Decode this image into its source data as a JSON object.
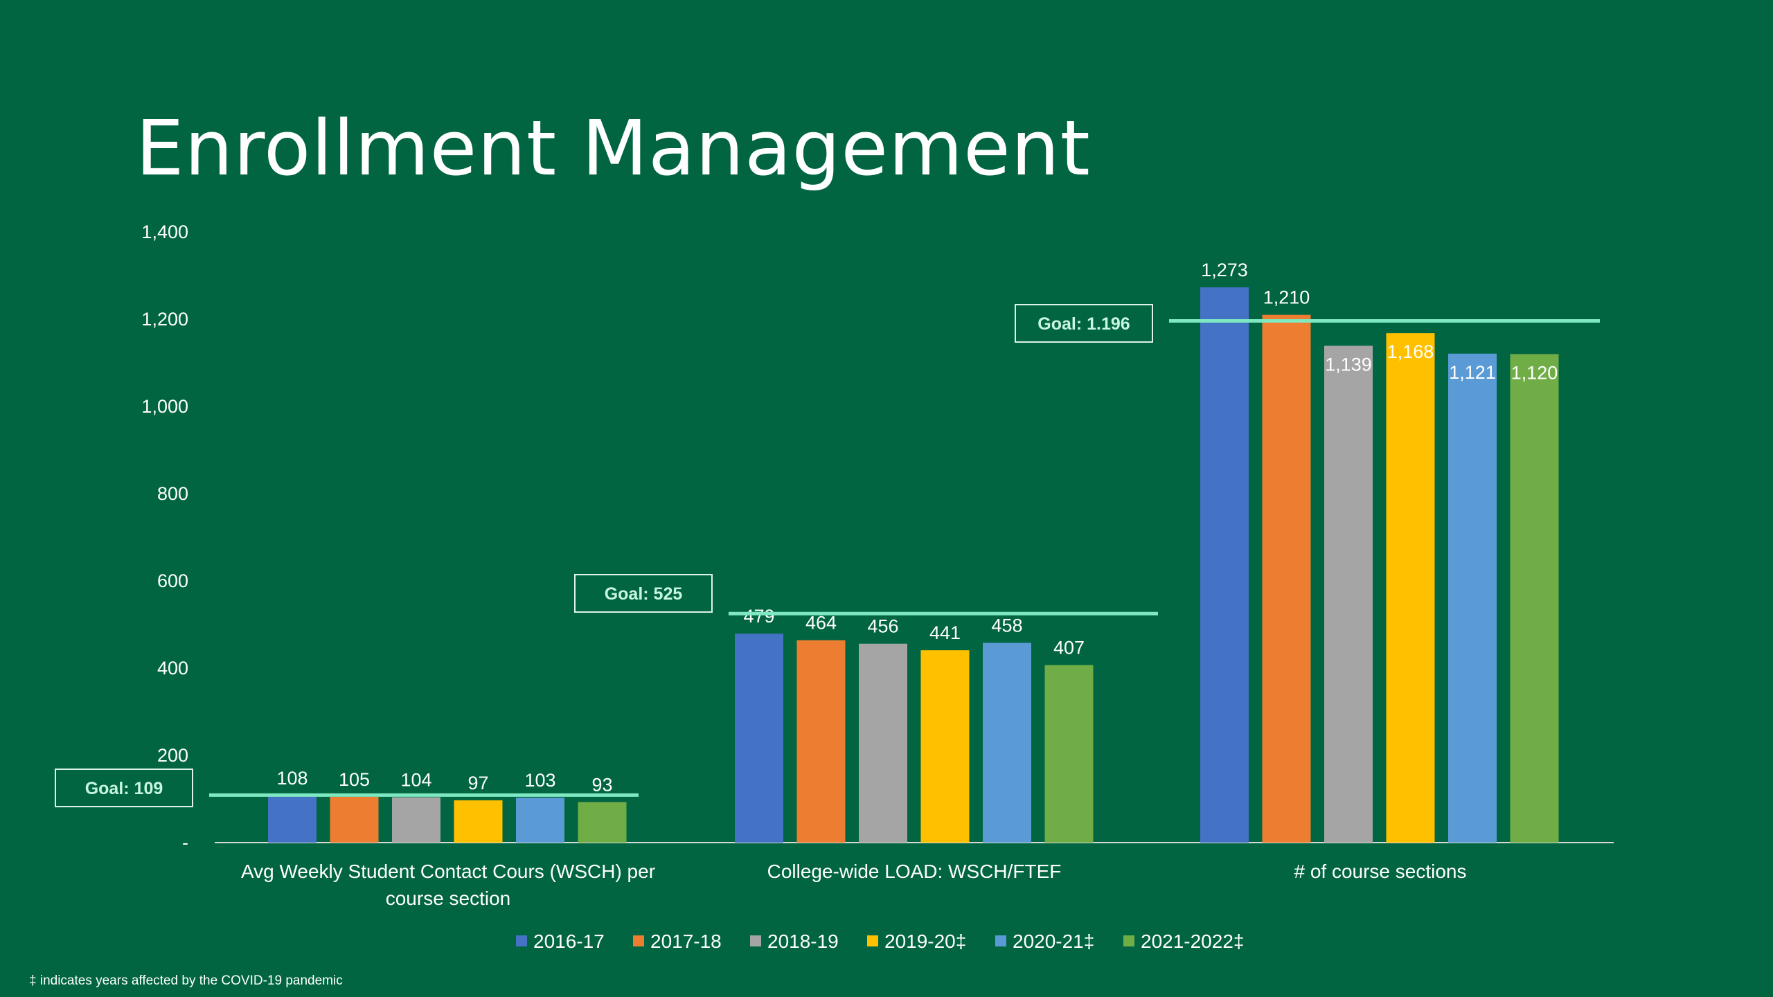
{
  "slide": {
    "title": "Enrollment Management",
    "footnote": "‡ indicates years affected by the COVID-19 pandemic"
  },
  "colors": {
    "background": "#006540",
    "goal_line": "#7ee8c0",
    "text": "#ffffff"
  },
  "chart_data": {
    "type": "bar",
    "title": "",
    "xlabel": "",
    "ylabel": "",
    "ylim": [
      0,
      1400
    ],
    "yticks": [
      0,
      200,
      400,
      600,
      800,
      1000,
      1200,
      1400
    ],
    "ytick_labels": [
      "-",
      "200",
      "400",
      "600",
      "800",
      "1,000",
      "1,200",
      "1,400"
    ],
    "grid": false,
    "legend_position": "bottom",
    "categories": [
      "Avg Weekly Student Contact Cours (WSCH) per course section",
      "College-wide LOAD:  WSCH/FTEF",
      "# of course sections"
    ],
    "category_label_lines": [
      [
        "Avg Weekly Student Contact Cours (WSCH) per",
        "course section"
      ],
      [
        "College-wide LOAD:  WSCH/FTEF"
      ],
      [
        "# of course sections"
      ]
    ],
    "series": [
      {
        "name": "2016-17",
        "color": "#4472c4",
        "values": [
          108,
          479,
          1273
        ],
        "labels": [
          "108",
          "479",
          "1,273"
        ]
      },
      {
        "name": "2017-18",
        "color": "#ed7d31",
        "values": [
          105,
          464,
          1210
        ],
        "labels": [
          "105",
          "464",
          "1,210"
        ]
      },
      {
        "name": "2018-19",
        "color": "#a5a5a5",
        "values": [
          104,
          456,
          1139
        ],
        "labels": [
          "104",
          "456",
          "1,139"
        ]
      },
      {
        "name": "2019-20‡",
        "color": "#ffc000",
        "values": [
          97,
          441,
          1168
        ],
        "labels": [
          "97",
          "441",
          "1,168"
        ]
      },
      {
        "name": "2020-21‡",
        "color": "#5b9bd5",
        "values": [
          103,
          458,
          1121
        ],
        "labels": [
          "103",
          "458",
          "1,121"
        ]
      },
      {
        "name": "2021-2022‡",
        "color": "#70ad47",
        "values": [
          93,
          407,
          1120
        ],
        "labels": [
          "93",
          "407",
          "1,120"
        ]
      }
    ],
    "goals": [
      {
        "category_index": 0,
        "value": 109,
        "label": "Goal:  109"
      },
      {
        "category_index": 1,
        "value": 525,
        "label": "Goal:  525"
      },
      {
        "category_index": 2,
        "value": 1196,
        "label": "Goal:  1.196"
      }
    ]
  }
}
